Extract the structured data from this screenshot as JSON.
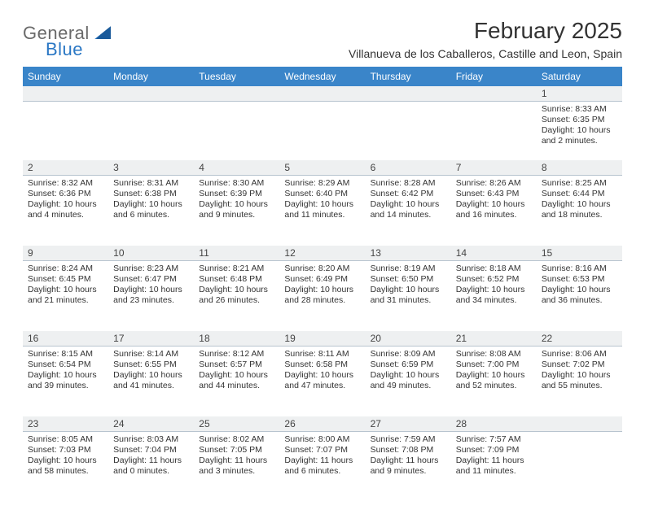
{
  "logo": {
    "word1": "General",
    "word2": "Blue"
  },
  "title": "February 2025",
  "location": "Villanueva de los Caballeros, Castille and Leon, Spain",
  "colors": {
    "header_bar": "#3a85c9",
    "daynum_bg": "#eef0f1",
    "rule": "#b8c4cf",
    "text": "#333333",
    "logo_gray": "#6a6a6a",
    "logo_blue": "#2a77c4"
  },
  "dow": [
    "Sunday",
    "Monday",
    "Tuesday",
    "Wednesday",
    "Thursday",
    "Friday",
    "Saturday"
  ],
  "weeks": [
    [
      {
        "n": "",
        "l1": "",
        "l2": "",
        "l3": "",
        "l4": ""
      },
      {
        "n": "",
        "l1": "",
        "l2": "",
        "l3": "",
        "l4": ""
      },
      {
        "n": "",
        "l1": "",
        "l2": "",
        "l3": "",
        "l4": ""
      },
      {
        "n": "",
        "l1": "",
        "l2": "",
        "l3": "",
        "l4": ""
      },
      {
        "n": "",
        "l1": "",
        "l2": "",
        "l3": "",
        "l4": ""
      },
      {
        "n": "",
        "l1": "",
        "l2": "",
        "l3": "",
        "l4": ""
      },
      {
        "n": "1",
        "l1": "Sunrise: 8:33 AM",
        "l2": "Sunset: 6:35 PM",
        "l3": "Daylight: 10 hours",
        "l4": "and 2 minutes."
      }
    ],
    [
      {
        "n": "2",
        "l1": "Sunrise: 8:32 AM",
        "l2": "Sunset: 6:36 PM",
        "l3": "Daylight: 10 hours",
        "l4": "and 4 minutes."
      },
      {
        "n": "3",
        "l1": "Sunrise: 8:31 AM",
        "l2": "Sunset: 6:38 PM",
        "l3": "Daylight: 10 hours",
        "l4": "and 6 minutes."
      },
      {
        "n": "4",
        "l1": "Sunrise: 8:30 AM",
        "l2": "Sunset: 6:39 PM",
        "l3": "Daylight: 10 hours",
        "l4": "and 9 minutes."
      },
      {
        "n": "5",
        "l1": "Sunrise: 8:29 AM",
        "l2": "Sunset: 6:40 PM",
        "l3": "Daylight: 10 hours",
        "l4": "and 11 minutes."
      },
      {
        "n": "6",
        "l1": "Sunrise: 8:28 AM",
        "l2": "Sunset: 6:42 PM",
        "l3": "Daylight: 10 hours",
        "l4": "and 14 minutes."
      },
      {
        "n": "7",
        "l1": "Sunrise: 8:26 AM",
        "l2": "Sunset: 6:43 PM",
        "l3": "Daylight: 10 hours",
        "l4": "and 16 minutes."
      },
      {
        "n": "8",
        "l1": "Sunrise: 8:25 AM",
        "l2": "Sunset: 6:44 PM",
        "l3": "Daylight: 10 hours",
        "l4": "and 18 minutes."
      }
    ],
    [
      {
        "n": "9",
        "l1": "Sunrise: 8:24 AM",
        "l2": "Sunset: 6:45 PM",
        "l3": "Daylight: 10 hours",
        "l4": "and 21 minutes."
      },
      {
        "n": "10",
        "l1": "Sunrise: 8:23 AM",
        "l2": "Sunset: 6:47 PM",
        "l3": "Daylight: 10 hours",
        "l4": "and 23 minutes."
      },
      {
        "n": "11",
        "l1": "Sunrise: 8:21 AM",
        "l2": "Sunset: 6:48 PM",
        "l3": "Daylight: 10 hours",
        "l4": "and 26 minutes."
      },
      {
        "n": "12",
        "l1": "Sunrise: 8:20 AM",
        "l2": "Sunset: 6:49 PM",
        "l3": "Daylight: 10 hours",
        "l4": "and 28 minutes."
      },
      {
        "n": "13",
        "l1": "Sunrise: 8:19 AM",
        "l2": "Sunset: 6:50 PM",
        "l3": "Daylight: 10 hours",
        "l4": "and 31 minutes."
      },
      {
        "n": "14",
        "l1": "Sunrise: 8:18 AM",
        "l2": "Sunset: 6:52 PM",
        "l3": "Daylight: 10 hours",
        "l4": "and 34 minutes."
      },
      {
        "n": "15",
        "l1": "Sunrise: 8:16 AM",
        "l2": "Sunset: 6:53 PM",
        "l3": "Daylight: 10 hours",
        "l4": "and 36 minutes."
      }
    ],
    [
      {
        "n": "16",
        "l1": "Sunrise: 8:15 AM",
        "l2": "Sunset: 6:54 PM",
        "l3": "Daylight: 10 hours",
        "l4": "and 39 minutes."
      },
      {
        "n": "17",
        "l1": "Sunrise: 8:14 AM",
        "l2": "Sunset: 6:55 PM",
        "l3": "Daylight: 10 hours",
        "l4": "and 41 minutes."
      },
      {
        "n": "18",
        "l1": "Sunrise: 8:12 AM",
        "l2": "Sunset: 6:57 PM",
        "l3": "Daylight: 10 hours",
        "l4": "and 44 minutes."
      },
      {
        "n": "19",
        "l1": "Sunrise: 8:11 AM",
        "l2": "Sunset: 6:58 PM",
        "l3": "Daylight: 10 hours",
        "l4": "and 47 minutes."
      },
      {
        "n": "20",
        "l1": "Sunrise: 8:09 AM",
        "l2": "Sunset: 6:59 PM",
        "l3": "Daylight: 10 hours",
        "l4": "and 49 minutes."
      },
      {
        "n": "21",
        "l1": "Sunrise: 8:08 AM",
        "l2": "Sunset: 7:00 PM",
        "l3": "Daylight: 10 hours",
        "l4": "and 52 minutes."
      },
      {
        "n": "22",
        "l1": "Sunrise: 8:06 AM",
        "l2": "Sunset: 7:02 PM",
        "l3": "Daylight: 10 hours",
        "l4": "and 55 minutes."
      }
    ],
    [
      {
        "n": "23",
        "l1": "Sunrise: 8:05 AM",
        "l2": "Sunset: 7:03 PM",
        "l3": "Daylight: 10 hours",
        "l4": "and 58 minutes."
      },
      {
        "n": "24",
        "l1": "Sunrise: 8:03 AM",
        "l2": "Sunset: 7:04 PM",
        "l3": "Daylight: 11 hours",
        "l4": "and 0 minutes."
      },
      {
        "n": "25",
        "l1": "Sunrise: 8:02 AM",
        "l2": "Sunset: 7:05 PM",
        "l3": "Daylight: 11 hours",
        "l4": "and 3 minutes."
      },
      {
        "n": "26",
        "l1": "Sunrise: 8:00 AM",
        "l2": "Sunset: 7:07 PM",
        "l3": "Daylight: 11 hours",
        "l4": "and 6 minutes."
      },
      {
        "n": "27",
        "l1": "Sunrise: 7:59 AM",
        "l2": "Sunset: 7:08 PM",
        "l3": "Daylight: 11 hours",
        "l4": "and 9 minutes."
      },
      {
        "n": "28",
        "l1": "Sunrise: 7:57 AM",
        "l2": "Sunset: 7:09 PM",
        "l3": "Daylight: 11 hours",
        "l4": "and 11 minutes."
      },
      {
        "n": "",
        "l1": "",
        "l2": "",
        "l3": "",
        "l4": ""
      }
    ]
  ]
}
